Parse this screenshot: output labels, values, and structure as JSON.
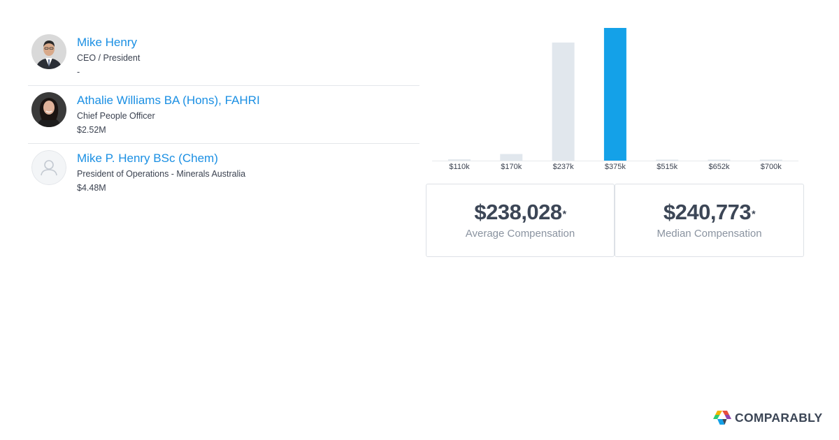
{
  "people": [
    {
      "name": "Mike Henry",
      "title": "CEO / President",
      "compensation": "-",
      "avatar": "photo-man"
    },
    {
      "name": "Athalie Williams BA (Hons), FAHRI",
      "title": "Chief People Officer",
      "compensation": "$2.52M",
      "avatar": "photo-woman"
    },
    {
      "name": "Mike P. Henry BSc (Chem)",
      "title": "President of Operations - Minerals Australia",
      "compensation": "$4.48M",
      "avatar": "placeholder-user"
    }
  ],
  "chart_data": {
    "type": "bar",
    "categories": [
      "$110k",
      "$170k",
      "$237k",
      "$375k",
      "$515k",
      "$652k",
      "$700k"
    ],
    "values": [
      1,
      5,
      89,
      100,
      0,
      0,
      0
    ],
    "highlight_index": 3,
    "title": "",
    "xlabel": "",
    "ylabel": "",
    "ylim": [
      0,
      100
    ],
    "colors": {
      "bar": "#e1e7ed",
      "highlight": "#14a1e8",
      "axis": "#e6e9ec",
      "tick_label": "#3b4250"
    }
  },
  "stats": {
    "average": {
      "value": "$238,028",
      "marker": "*",
      "label": "Average Compensation"
    },
    "median": {
      "value": "$240,773",
      "marker": "*",
      "label": "Median Compensation"
    }
  },
  "brand": {
    "name": "COMPARABLY",
    "colors": [
      "#f4b400",
      "#e84e3c",
      "#8e44ad",
      "#14a1e8",
      "#2ecc71"
    ]
  }
}
